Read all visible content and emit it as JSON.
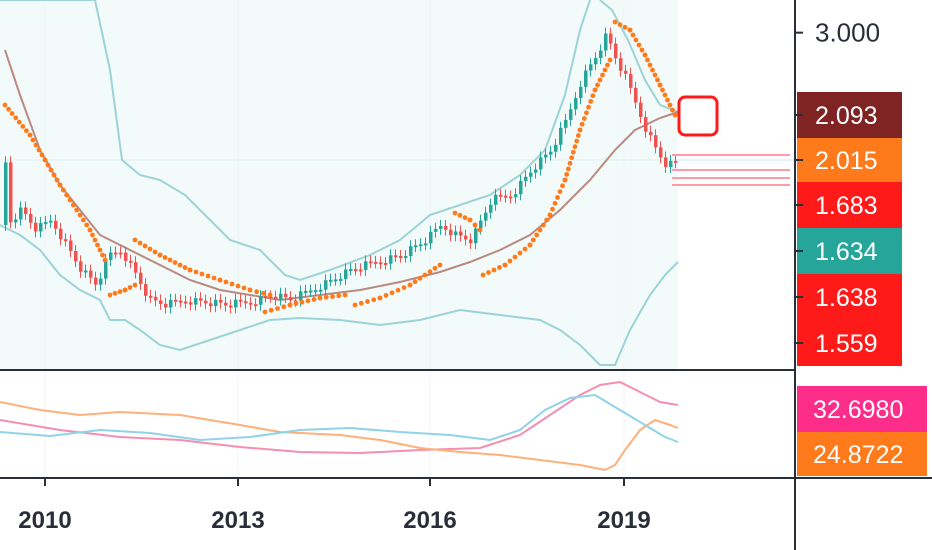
{
  "chart_data": {
    "type": "candlestick",
    "x_ticks": [
      "2010",
      "2013",
      "2016",
      "2019"
    ],
    "price_axis": {
      "ticks": [
        "3.000"
      ],
      "ylim": [
        1.45,
        3.15
      ]
    },
    "price_tags": [
      {
        "value": "2.093",
        "color": "#7f2323"
      },
      {
        "value": "2.015",
        "color": "#ff7a1a"
      },
      {
        "value": "1.683",
        "color": "#ff1a1a"
      },
      {
        "value": "1.634",
        "color": "#26a69a"
      },
      {
        "value": "1.638",
        "color": "#ff1a1a"
      },
      {
        "value": "1.559",
        "color": "#ff1a1a"
      }
    ],
    "oscillator_tags": [
      {
        "value": "32.6980",
        "color": "#ff2d8a"
      },
      {
        "value": "24.8722",
        "color": "#ff7a1a"
      }
    ],
    "colors": {
      "up": "#26a69a",
      "down": "#ef5350",
      "psar": "#ff7a1a",
      "bands": "#9cd3d8",
      "band_fill": "#eaf6f7",
      "ma": "#b98a80",
      "osc_pink": "#f48fb1",
      "osc_orange": "#ffb07a",
      "osc_blue": "#8fd3e8"
    }
  }
}
